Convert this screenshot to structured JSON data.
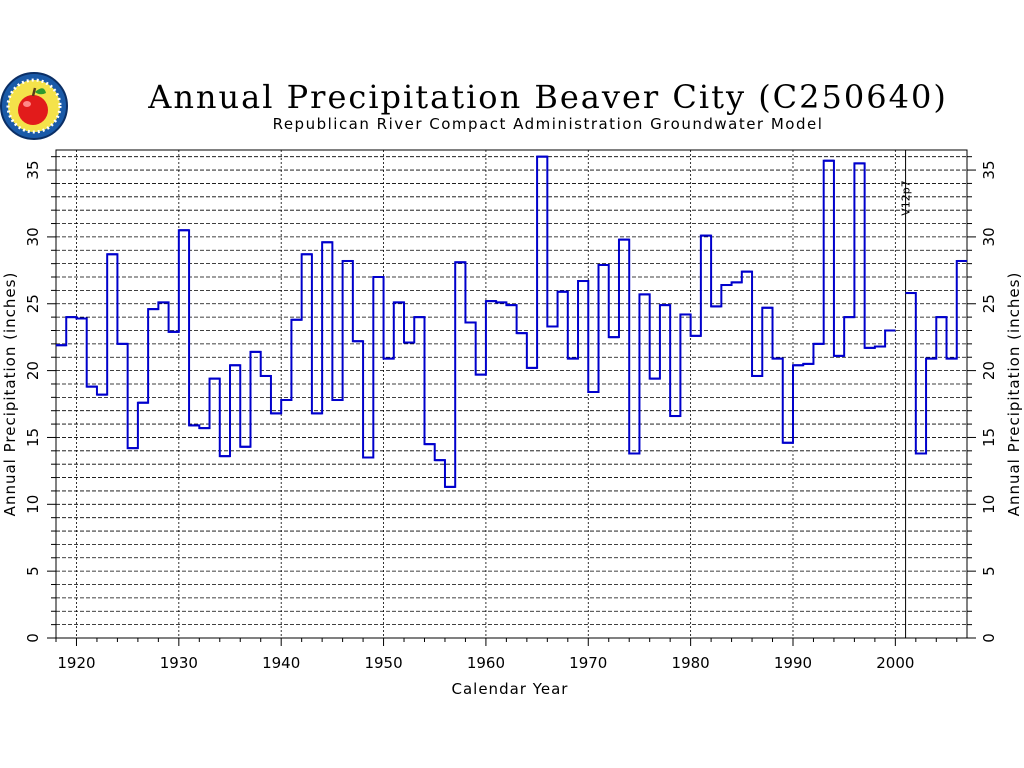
{
  "chart_data": {
    "type": "line",
    "style": "step",
    "title": "Annual Precipitation Beaver City (C250640)",
    "subtitle": "Republican River Compact Administration Groundwater Model",
    "xlabel": "Calendar Year",
    "ylabel": "Annual Precipitation (inches)",
    "xlim": [
      1918,
      2007
    ],
    "ylim": [
      0,
      36.5
    ],
    "x_ticks": [
      1920,
      1930,
      1940,
      1950,
      1960,
      1970,
      1980,
      1990,
      2000
    ],
    "y_ticks": [
      0,
      5,
      10,
      15,
      20,
      25,
      30,
      35
    ],
    "grid": true,
    "annotation": {
      "text": "V12p7",
      "x": 2001
    },
    "series": [
      {
        "color": "#0000cc",
        "x": [
          1918,
          1919,
          1920,
          1921,
          1922,
          1923,
          1924,
          1925,
          1926,
          1927,
          1928,
          1929,
          1930,
          1931,
          1932,
          1933,
          1934,
          1935,
          1936,
          1937,
          1938,
          1939,
          1940,
          1941,
          1942,
          1943,
          1944,
          1945,
          1946,
          1947,
          1948,
          1949,
          1950,
          1951,
          1952,
          1953,
          1954,
          1955,
          1956,
          1957,
          1958,
          1959,
          1960,
          1961,
          1962,
          1963,
          1964,
          1965,
          1966,
          1967,
          1968,
          1969,
          1970,
          1971,
          1972,
          1973,
          1974,
          1975,
          1976,
          1977,
          1978,
          1979,
          1980,
          1981,
          1982,
          1983,
          1984,
          1985,
          1986,
          1987,
          1988,
          1989,
          1990,
          1991,
          1992,
          1993,
          1994,
          1995,
          1996,
          1997,
          1998,
          1999,
          2000,
          2001,
          2002,
          2003,
          2004,
          2005,
          2006
        ],
        "values": [
          21.9,
          24.0,
          23.9,
          18.8,
          18.2,
          28.7,
          22.0,
          14.2,
          17.6,
          24.6,
          25.1,
          22.9,
          30.5,
          15.9,
          15.7,
          19.4,
          13.6,
          20.4,
          14.3,
          21.4,
          19.6,
          16.8,
          17.8,
          23.8,
          28.7,
          16.8,
          29.6,
          17.8,
          28.2,
          22.2,
          13.5,
          27.0,
          20.9,
          25.1,
          22.1,
          24.0,
          14.5,
          13.3,
          11.3,
          28.1,
          23.6,
          19.7,
          25.2,
          25.1,
          24.9,
          22.8,
          20.2,
          36.0,
          23.3,
          25.9,
          20.9,
          26.7,
          18.4,
          27.9,
          22.5,
          29.8,
          13.8,
          25.7,
          19.4,
          24.9,
          16.6,
          24.2,
          22.6,
          30.1,
          24.8,
          26.4,
          26.6,
          27.4,
          19.6,
          24.7,
          20.9,
          14.6,
          20.4,
          20.5,
          22.0,
          35.7,
          21.1,
          24.0,
          35.5,
          21.7,
          21.8,
          23.0,
          null,
          25.8,
          13.8,
          20.9,
          24.0,
          20.9,
          28.2
        ]
      }
    ]
  }
}
